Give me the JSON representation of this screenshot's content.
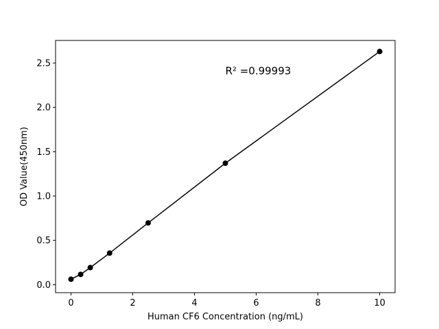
{
  "chart_data": {
    "type": "line",
    "xlabel": "Human CF6 Concentration (ng/mL)",
    "ylabel": "OD Value(450nm)",
    "x": [
      0,
      0.3125,
      0.625,
      1.25,
      2.5,
      5,
      10
    ],
    "series": [
      {
        "color": "#000000",
        "values": [
          0.062,
          0.116,
          0.193,
          0.356,
          0.697,
          1.37,
          2.63
        ]
      }
    ],
    "xlim": [
      -0.5,
      10.5
    ],
    "ylim": [
      -0.09,
      2.755
    ],
    "xticks": [
      0,
      2,
      4,
      6,
      8,
      10
    ],
    "yticks": [
      {
        "value": 0,
        "label": "0.0"
      },
      0.5,
      {
        "value": 1,
        "label": "1.0"
      },
      1.5,
      {
        "value": 2,
        "label": "2.0"
      },
      2.5
    ],
    "annotations": [
      {
        "text": "R² =0.99993",
        "x": 5,
        "y": 2.41
      }
    ]
  }
}
